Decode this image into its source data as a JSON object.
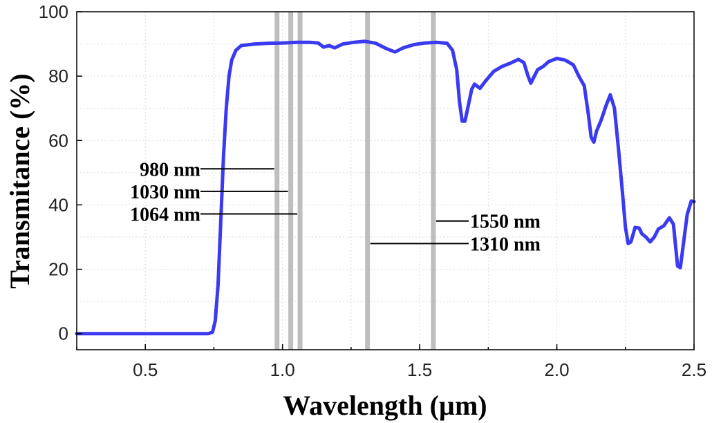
{
  "chart_data": {
    "type": "line",
    "title": "",
    "xlabel": "Wavelength (µm)",
    "ylabel": "Transmitance (%)",
    "xlim": [
      0.25,
      2.5
    ],
    "ylim": [
      -5,
      100
    ],
    "x_ticks": [
      0.5,
      1.0,
      1.5,
      2.0,
      2.5
    ],
    "x_tick_labels": [
      "0.5",
      "1.0",
      "1.5",
      "2.0",
      "2.5"
    ],
    "y_ticks": [
      0,
      20,
      40,
      60,
      80,
      100
    ],
    "y_tick_labels": [
      "0",
      "20",
      "40",
      "60",
      "80",
      "100"
    ],
    "grid": true,
    "series": [
      {
        "name": "Transmittance",
        "color": "#3a3af0",
        "points": [
          [
            0.25,
            0
          ],
          [
            0.4,
            0
          ],
          [
            0.5,
            0
          ],
          [
            0.6,
            0
          ],
          [
            0.7,
            0
          ],
          [
            0.73,
            0
          ],
          [
            0.745,
            0.5
          ],
          [
            0.755,
            4
          ],
          [
            0.765,
            15
          ],
          [
            0.775,
            35
          ],
          [
            0.785,
            55
          ],
          [
            0.795,
            70
          ],
          [
            0.805,
            80
          ],
          [
            0.815,
            85
          ],
          [
            0.83,
            88
          ],
          [
            0.85,
            89.5
          ],
          [
            0.9,
            90
          ],
          [
            0.95,
            90.2
          ],
          [
            1.0,
            90.3
          ],
          [
            1.05,
            90.5
          ],
          [
            1.1,
            90.5
          ],
          [
            1.13,
            90.3
          ],
          [
            1.15,
            89
          ],
          [
            1.17,
            89.5
          ],
          [
            1.19,
            88.8
          ],
          [
            1.22,
            90
          ],
          [
            1.26,
            90.5
          ],
          [
            1.3,
            90.8
          ],
          [
            1.34,
            90.2
          ],
          [
            1.38,
            88.5
          ],
          [
            1.41,
            87.5
          ],
          [
            1.44,
            88.8
          ],
          [
            1.48,
            89.8
          ],
          [
            1.52,
            90.3
          ],
          [
            1.56,
            90.5
          ],
          [
            1.6,
            90.2
          ],
          [
            1.62,
            88
          ],
          [
            1.635,
            82
          ],
          [
            1.645,
            72
          ],
          [
            1.655,
            66
          ],
          [
            1.665,
            66
          ],
          [
            1.675,
            70
          ],
          [
            1.69,
            76
          ],
          [
            1.7,
            77.5
          ],
          [
            1.72,
            76.2
          ],
          [
            1.74,
            78.5
          ],
          [
            1.77,
            81.5
          ],
          [
            1.8,
            83
          ],
          [
            1.83,
            84
          ],
          [
            1.86,
            85.2
          ],
          [
            1.88,
            84.2
          ],
          [
            1.895,
            80
          ],
          [
            1.905,
            77.8
          ],
          [
            1.915,
            79.5
          ],
          [
            1.93,
            82
          ],
          [
            1.95,
            83
          ],
          [
            1.97,
            84.5
          ],
          [
            2.0,
            85.5
          ],
          [
            2.03,
            85
          ],
          [
            2.06,
            83.5
          ],
          [
            2.08,
            80
          ],
          [
            2.1,
            77
          ],
          [
            2.115,
            68
          ],
          [
            2.125,
            61
          ],
          [
            2.135,
            59.5
          ],
          [
            2.145,
            63
          ],
          [
            2.16,
            66
          ],
          [
            2.18,
            71
          ],
          [
            2.195,
            74.2
          ],
          [
            2.21,
            70
          ],
          [
            2.225,
            57
          ],
          [
            2.24,
            43
          ],
          [
            2.25,
            33
          ],
          [
            2.26,
            28
          ],
          [
            2.27,
            28.5
          ],
          [
            2.285,
            33
          ],
          [
            2.3,
            32.8
          ],
          [
            2.31,
            31
          ],
          [
            2.325,
            30
          ],
          [
            2.34,
            28.5
          ],
          [
            2.355,
            30
          ],
          [
            2.37,
            32.5
          ],
          [
            2.39,
            33.5
          ],
          [
            2.41,
            36
          ],
          [
            2.425,
            34
          ],
          [
            2.44,
            21
          ],
          [
            2.45,
            20.5
          ],
          [
            2.46,
            27
          ],
          [
            2.475,
            37
          ],
          [
            2.49,
            41.2
          ],
          [
            2.5,
            41
          ]
        ]
      }
    ],
    "reference_lines": [
      {
        "x": 0.98,
        "label": "980 nm"
      },
      {
        "x": 1.03,
        "label": "1030 nm"
      },
      {
        "x": 1.064,
        "label": "1064 nm"
      },
      {
        "x": 1.31,
        "label": "1310 nm"
      },
      {
        "x": 1.55,
        "label": "1550 nm"
      }
    ]
  }
}
